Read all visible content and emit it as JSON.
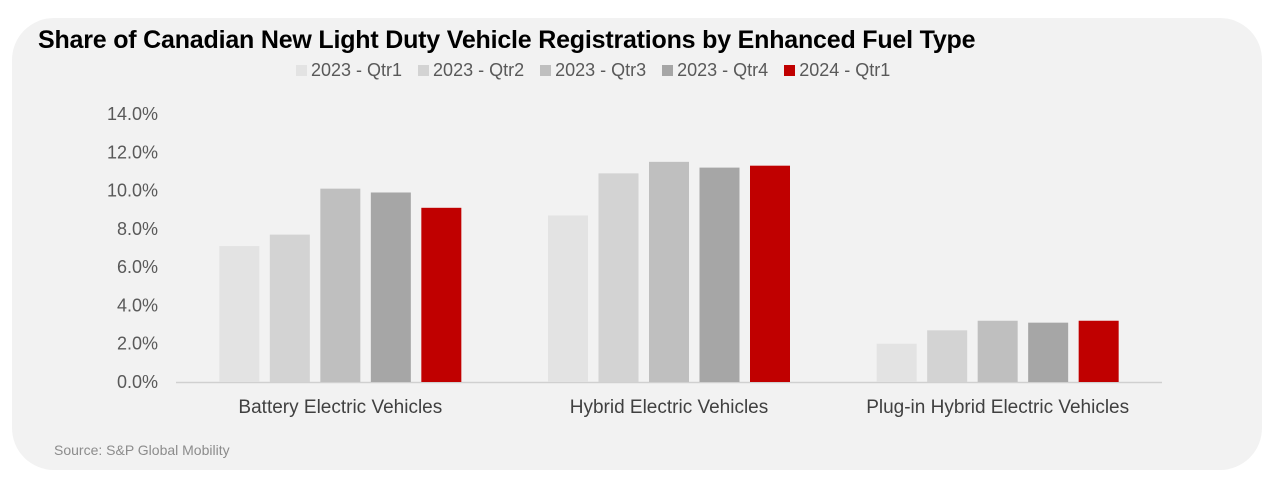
{
  "title": "Share of Canadian New Light Duty Vehicle Registrations by Enhanced Fuel Type",
  "source": "Source: S&P Global Mobility",
  "chart_data": {
    "type": "bar",
    "title": "Share of Canadian New Light Duty Vehicle Registrations by Enhanced Fuel Type",
    "xlabel": "",
    "ylabel": "",
    "categories": [
      "Battery Electric Vehicles",
      "Hybrid Electric Vehicles",
      "Plug-in Hybrid Electric Vehicles"
    ],
    "series": [
      {
        "name": "2023 - Qtr1",
        "color": "#e3e3e3",
        "values": [
          7.1,
          8.7,
          2.0
        ]
      },
      {
        "name": "2023 - Qtr2",
        "color": "#d3d3d3",
        "values": [
          7.7,
          10.9,
          2.7
        ]
      },
      {
        "name": "2023 - Qtr3",
        "color": "#bfbfbf",
        "values": [
          10.1,
          11.5,
          3.2
        ]
      },
      {
        "name": "2023 - Qtr4",
        "color": "#a6a6a6",
        "values": [
          9.9,
          11.2,
          3.1
        ]
      },
      {
        "name": "2024 - Qtr1",
        "color": "#c00000",
        "values": [
          9.1,
          11.3,
          3.2
        ]
      }
    ],
    "ylim": [
      0,
      14
    ],
    "yticks": [
      0,
      2,
      4,
      6,
      8,
      10,
      12,
      14
    ],
    "ytick_labels": [
      "0.0%",
      "2.0%",
      "4.0%",
      "6.0%",
      "8.0%",
      "10.0%",
      "12.0%",
      "14.0%"
    ],
    "grid": false,
    "legend_position": "top"
  }
}
